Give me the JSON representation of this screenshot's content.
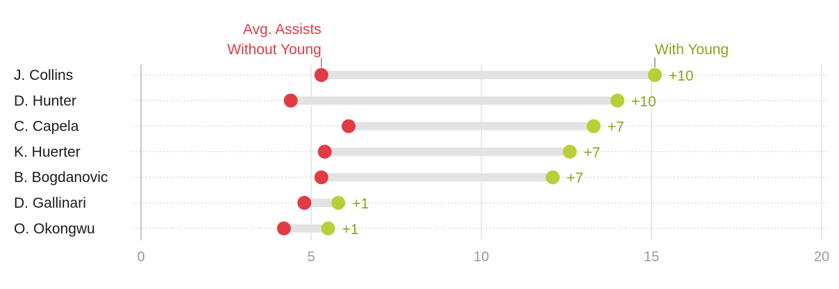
{
  "chart_data": {
    "type": "dumbbell",
    "title": "",
    "xlabel": "",
    "ylabel": "",
    "xlim": [
      0,
      20
    ],
    "xticks": [
      0,
      5,
      10,
      15,
      20
    ],
    "grid": true,
    "legend": "annotations-top",
    "series": [
      {
        "name": "Avg. Assists Without Young",
        "label_lines": [
          "Avg. Assists",
          "Without Young"
        ],
        "color": "#e03c46"
      },
      {
        "name": "With Young",
        "label_lines": [
          "With Young"
        ],
        "color": "#b9cf37"
      }
    ],
    "label_color_with": "#8fa21c",
    "rows": [
      {
        "player": "J. Collins",
        "without": 5.3,
        "with": 15.1,
        "diff": "+10"
      },
      {
        "player": "D. Hunter",
        "without": 4.4,
        "with": 14.0,
        "diff": "+10"
      },
      {
        "player": "C. Capela",
        "without": 6.1,
        "with": 13.3,
        "diff": "+7"
      },
      {
        "player": "K. Huerter",
        "without": 5.4,
        "with": 12.6,
        "diff": "+7"
      },
      {
        "player": "B. Bogdanovic",
        "without": 5.3,
        "with": 12.1,
        "diff": "+7"
      },
      {
        "player": "D. Gallinari",
        "without": 4.8,
        "with": 5.8,
        "diff": "+1"
      },
      {
        "player": "O. Okongwu",
        "without": 4.2,
        "with": 5.5,
        "diff": "+1"
      }
    ]
  }
}
